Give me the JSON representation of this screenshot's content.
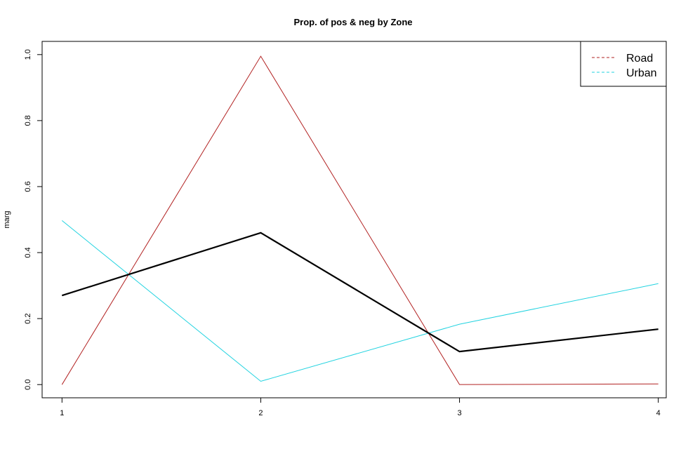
{
  "chart_data": {
    "type": "line",
    "title": "Prop. of pos & neg by Zone",
    "xlabel": "",
    "ylabel": "marg",
    "x": [
      1,
      2,
      3,
      4
    ],
    "x_tick_labels": [
      "1",
      "2",
      "3",
      "4"
    ],
    "y_tick_labels": [
      "0.0",
      "0.2",
      "0.4",
      "0.6",
      "0.8",
      "1.0"
    ],
    "y_ticks": [
      0.0,
      0.2,
      0.4,
      0.6,
      0.8,
      1.0
    ],
    "xlim": [
      0.9,
      4.04
    ],
    "ylim": [
      -0.04,
      1.04
    ],
    "grid": false,
    "legend_position": "top-right",
    "series": [
      {
        "name": "Road",
        "values": [
          0.0,
          0.995,
          0.0,
          0.002
        ],
        "color": "#b22222",
        "width": 1,
        "legend": true
      },
      {
        "name": "Urban",
        "values": [
          0.497,
          0.01,
          0.183,
          0.306
        ],
        "color": "#22d3e0",
        "width": 1,
        "legend": true
      },
      {
        "name": "",
        "values": [
          0.27,
          0.46,
          0.1,
          0.168
        ],
        "color": "#000000",
        "width": 2.2,
        "legend": false
      }
    ]
  }
}
